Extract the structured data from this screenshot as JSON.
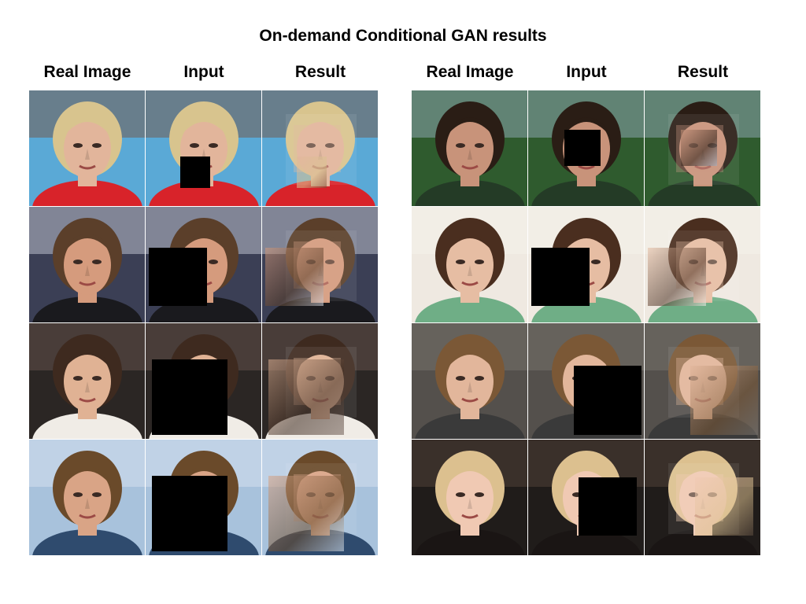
{
  "title": "On-demand Conditional GAN results",
  "columns": [
    "Real Image",
    "Input",
    "Result"
  ],
  "panels": [
    {
      "side": "left",
      "rows": [
        {
          "subject": "blonde woman, red collar",
          "bg": "#5aa9d6",
          "bg2": "#7a4a34",
          "hair": "#d8c48e",
          "skin": "#e2b59b",
          "cloth": "#d8232a",
          "mask": "bottom-left-small"
        },
        {
          "subject": "man, stormy sky",
          "bg": "#3b3f55",
          "bg2": "#d7dbe6",
          "hair": "#5b3f2a",
          "skin": "#d59b7d",
          "cloth": "#1a1a1e",
          "mask": "left-large"
        },
        {
          "subject": "woman, dark background",
          "bg": "#2b2624",
          "bg2": "#6e5c54",
          "hair": "#3e2a1f",
          "skin": "#e0b294",
          "cloth": "#f0ece6",
          "mask": "center-large"
        },
        {
          "subject": "young man, light blue background",
          "bg": "#a8c2dc",
          "bg2": "#dde7f1",
          "hair": "#6a4a2a",
          "skin": "#d9a486",
          "cloth": "#2f4b6e",
          "mask": "center-large"
        }
      ]
    },
    {
      "side": "right",
      "rows": [
        {
          "subject": "smiling man, stadium",
          "bg": "#2f5b2e",
          "bg2": "#9fb3c9",
          "hair": "#2a1d15",
          "skin": "#c8937a",
          "cloth": "#243b26",
          "mask": "center-small"
        },
        {
          "subject": "brunette woman, light background",
          "bg": "#efe9e1",
          "bg2": "#f7f3ee",
          "hair": "#4a2e1f",
          "skin": "#e6bda3",
          "cloth": "#6fae86",
          "mask": "left-large"
        },
        {
          "subject": "woman, grey background",
          "bg": "#54504c",
          "bg2": "#7c7772",
          "hair": "#7b5836",
          "skin": "#e2b69b",
          "cloth": "#3a3a3a",
          "mask": "bottom-right-large"
        },
        {
          "subject": "blonde woman, dark background",
          "bg": "#201c1a",
          "bg2": "#5a4a3e",
          "hair": "#dcc08f",
          "skin": "#f0c9b3",
          "cloth": "#1a1514",
          "mask": "bottom-center"
        }
      ]
    }
  ]
}
